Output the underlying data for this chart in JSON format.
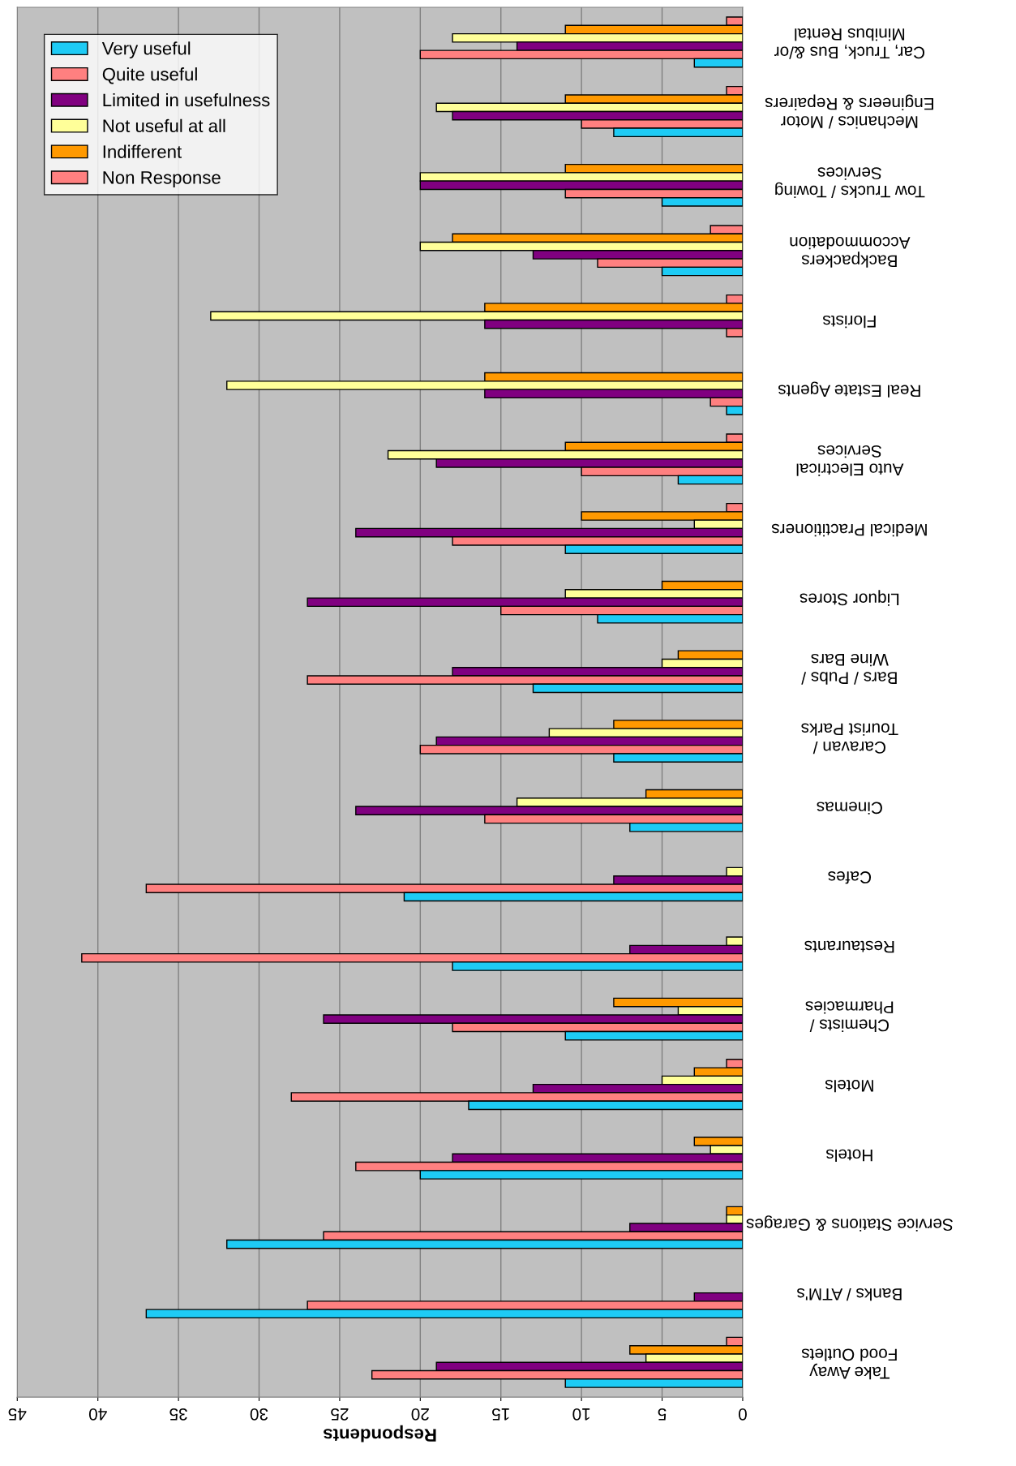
{
  "chart_data": {
    "type": "bar",
    "orientation": "horizontal",
    "xlabel": "Respondents",
    "categories": [
      "Car, Truck, Bus &/or\nMinibus Rental",
      "Mechanics / Motor\nEngineers & Repairers",
      "Tow Trucks / Towing\nServices",
      "Backpackers\nAccommodation",
      "Florists",
      "Real Estate Agents",
      "Auto Electrical\nServices",
      "Medical Practitioners",
      "Liquor Stores",
      "Bars / Pubs /\nWine Bars",
      "Caravan /\nTourist Parks",
      "Cinemas",
      "Cafes",
      "Restaurants",
      "Chemists /\nPharmacies",
      "Motels",
      "Hotels",
      "Service Stations & Garages",
      "Banks / ATM's",
      "Take Away\nFood Outlets"
    ],
    "series": [
      {
        "name": "Non Response",
        "color": "#ff8080",
        "values": [
          1,
          1,
          0,
          2,
          1,
          0,
          1,
          1,
          0,
          0,
          0,
          0,
          0,
          0,
          0,
          1,
          0,
          0,
          0,
          1
        ]
      },
      {
        "name": "Indifferent",
        "color": "#ff9900",
        "values": [
          11,
          11,
          11,
          18,
          16,
          16,
          11,
          10,
          5,
          4,
          8,
          6,
          0,
          0,
          8,
          3,
          3,
          1,
          0,
          7
        ]
      },
      {
        "name": "Not useful at all",
        "color": "#ffff99",
        "values": [
          18,
          19,
          20,
          20,
          33,
          32,
          22,
          3,
          11,
          5,
          12,
          14,
          1,
          1,
          4,
          5,
          2,
          1,
          0,
          6
        ]
      },
      {
        "name": "Limited in usefulness",
        "color": "#800080",
        "values": [
          14,
          18,
          20,
          13,
          16,
          16,
          19,
          24,
          27,
          18,
          19,
          24,
          8,
          7,
          26,
          13,
          18,
          7,
          3,
          19
        ]
      },
      {
        "name": "Quite useful",
        "color": "#ff8080",
        "values": [
          20,
          10,
          11,
          9,
          1,
          2,
          10,
          18,
          15,
          27,
          20,
          16,
          37,
          41,
          18,
          28,
          24,
          26,
          27,
          23
        ]
      },
      {
        "name": "Very useful",
        "color": "#1ecbf5",
        "values": [
          3,
          8,
          5,
          5,
          0,
          1,
          4,
          11,
          9,
          13,
          8,
          7,
          21,
          18,
          11,
          17,
          20,
          32,
          37,
          11
        ]
      }
    ],
    "xlim": [
      45,
      0
    ],
    "xticks": [
      0,
      5,
      10,
      15,
      20,
      25,
      30,
      35,
      40,
      45
    ],
    "grid": "x",
    "legend": "top left"
  }
}
